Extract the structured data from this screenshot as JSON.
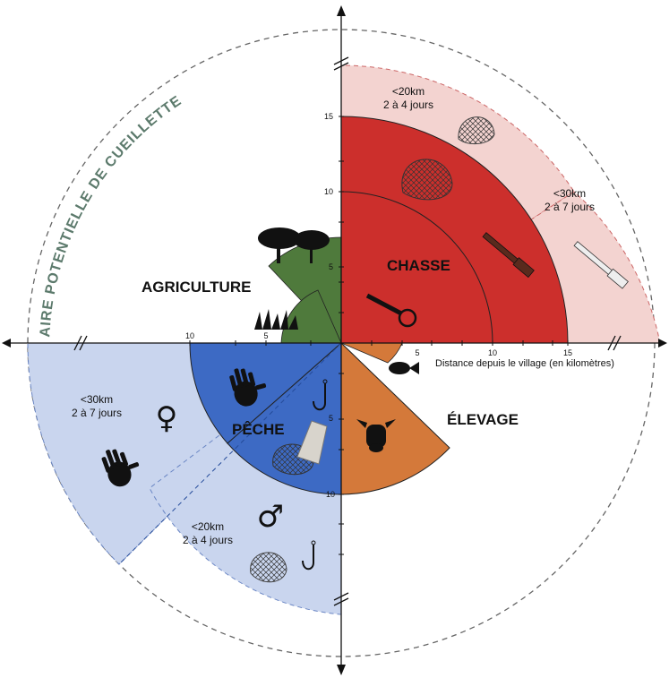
{
  "diagram": {
    "outer_title": "AIRE POTENTIELLE DE CUEILLETTE",
    "sectors": {
      "agriculture": "AGRICULTURE",
      "chasse": "CHASSE",
      "peche": "PÊCHE",
      "elevage": "ÉLEVAGE"
    },
    "zones": {
      "hunt_20_line1": "<20km",
      "hunt_20_line2": "2 à 4 jours",
      "hunt_30_line1": "<30km",
      "hunt_30_line2": "2 à 7 jours",
      "fish_30_line1": "<30km",
      "fish_30_line2": "2 à 7 jours",
      "fish_20_line1": "<20km",
      "fish_20_line2": "2 à 4 jours"
    },
    "axis": {
      "caption": "Distance depuis le village (en kilomètres)",
      "x_ticks": [
        "5",
        "10",
        "15"
      ],
      "y_ticks": [
        "5",
        "10",
        "15"
      ],
      "neg_x_ticks": [
        "10",
        "5"
      ],
      "neg_y_ticks": [
        "5",
        "10"
      ]
    },
    "symbols": {
      "female": "♀",
      "male": "♂"
    },
    "colors": {
      "hunting_dark": "#cc2f2c",
      "hunting_light": "#f3d3d0",
      "fishing_dark": "#3d6ac4",
      "fishing_light": "#c9d5ee",
      "agriculture": "#4f7a3c",
      "herding": "#d4793a"
    }
  }
}
